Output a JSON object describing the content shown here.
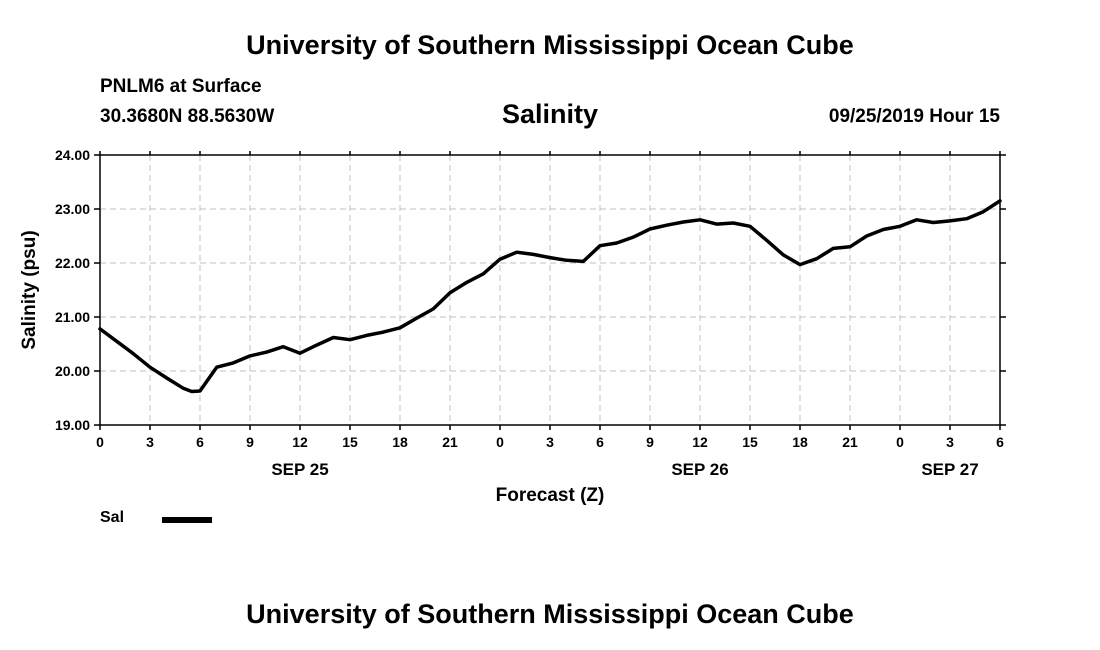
{
  "header": {
    "title": "University of Southern Mississippi Ocean Cube",
    "station": "PNLM6 at Surface",
    "coords": "30.3680N 88.5630W",
    "chart_title": "Salinity",
    "timestamp": "09/25/2019 Hour 15"
  },
  "footer": {
    "title": "University of Southern Mississippi Ocean Cube"
  },
  "legend": {
    "label": "Sal",
    "color": "#000000"
  },
  "chart_data": {
    "type": "line",
    "title": "Salinity",
    "xlabel": "Forecast (Z)",
    "ylabel": "Salinity (psu)",
    "xlim": [
      0,
      54
    ],
    "ylim": [
      19.0,
      24.0
    ],
    "grid": true,
    "legend_position": "bottom-left",
    "x_ticks": [
      0,
      3,
      6,
      9,
      12,
      15,
      18,
      21,
      24,
      27,
      30,
      33,
      36,
      39,
      42,
      45,
      48,
      51,
      54
    ],
    "x_tick_labels": [
      "0",
      "3",
      "6",
      "9",
      "12",
      "15",
      "18",
      "21",
      "0",
      "3",
      "6",
      "9",
      "12",
      "15",
      "18",
      "21",
      "0",
      "3",
      "6"
    ],
    "y_ticks": [
      19,
      20,
      21,
      22,
      23,
      24
    ],
    "y_tick_labels": [
      "19.00",
      "20.00",
      "21.00",
      "22.00",
      "23.00",
      "24.00"
    ],
    "date_labels": [
      {
        "x": 12,
        "label": "SEP 25"
      },
      {
        "x": 36,
        "label": "SEP 26"
      },
      {
        "x": 51,
        "label": "SEP 27"
      }
    ],
    "series": [
      {
        "name": "Sal",
        "x": [
          0,
          1,
          2,
          3,
          4,
          5,
          5.5,
          6,
          7,
          8,
          9,
          10,
          11,
          12,
          13,
          14,
          15,
          16,
          17,
          18,
          19,
          20,
          21,
          22,
          23,
          24,
          25,
          26,
          27,
          28,
          29,
          30,
          31,
          32,
          33,
          34,
          35,
          36,
          37,
          38,
          39,
          40,
          41,
          42,
          43,
          44,
          45,
          46,
          47,
          48,
          49,
          50,
          51,
          52,
          53,
          54
        ],
        "values": [
          20.78,
          20.55,
          20.32,
          20.07,
          19.87,
          19.68,
          19.62,
          19.63,
          20.07,
          20.15,
          20.28,
          20.35,
          20.45,
          20.33,
          20.48,
          20.62,
          20.58,
          20.66,
          20.72,
          20.8,
          20.98,
          21.15,
          21.45,
          21.64,
          21.8,
          22.07,
          22.2,
          22.16,
          22.1,
          22.05,
          22.03,
          22.32,
          22.37,
          22.48,
          22.63,
          22.7,
          22.76,
          22.8,
          22.72,
          22.74,
          22.68,
          22.42,
          22.15,
          21.97,
          22.08,
          22.27,
          22.3,
          22.5,
          22.62,
          22.68,
          22.8,
          22.75,
          22.78,
          22.82,
          22.95,
          23.15
        ]
      }
    ]
  }
}
